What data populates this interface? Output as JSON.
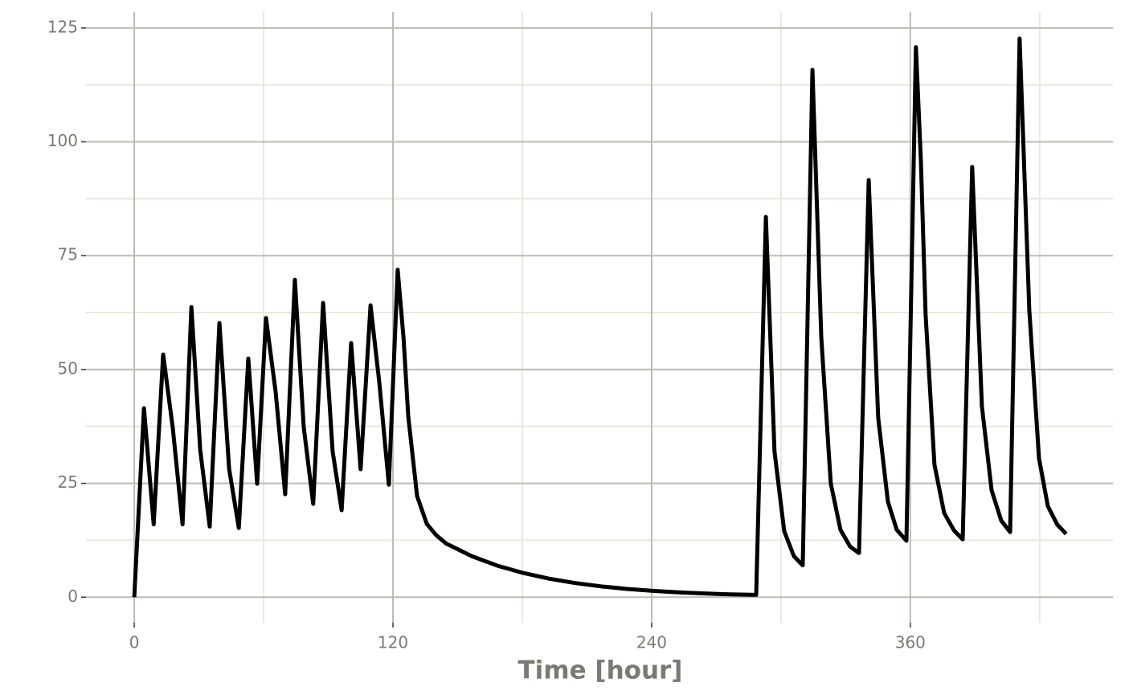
{
  "chart_data": {
    "type": "line",
    "xlabel": "Time [hour]",
    "xlim": [
      -22.4,
      454
    ],
    "ylim": [
      -5.6,
      128.5
    ],
    "xticks": [
      0,
      120,
      240,
      360
    ],
    "xminorticks": [
      60,
      180,
      300,
      420
    ],
    "yticks": [
      0,
      25,
      50,
      75,
      100,
      125
    ],
    "yminorticks": [
      12.5,
      37.5,
      62.5,
      87.5,
      112.5
    ],
    "grid": true,
    "series": [
      {
        "color": "#000000",
        "x": [
          0,
          4.5,
          9,
          13.4,
          17.9,
          22.4,
          26.5,
          30.6,
          35,
          39.5,
          44,
          48.5,
          52.9,
          57,
          61.1,
          65.6,
          70,
          74.5,
          78.6,
          83,
          87.6,
          92,
          96.2,
          100.6,
          105,
          109.6,
          113.7,
          118.1,
          122.2,
          124.9,
          127.1,
          131.2,
          135.7,
          140.1,
          144.6,
          156.6,
          168.6,
          180.6,
          192.6,
          204.6,
          216.6,
          228.6,
          240.6,
          252.6,
          264.6,
          276.6,
          288.5,
          293,
          297,
          301.5,
          306,
          310.1,
          314.6,
          318.7,
          323.1,
          327.6,
          332.1,
          336.2,
          340.7,
          345.1,
          349.6,
          353.7,
          358.2,
          362.6,
          364.9,
          367.1,
          371.2,
          375.7,
          380.2,
          384.3,
          388.7,
          393.2,
          397.7,
          402.2,
          406.3,
          410.7,
          415.2,
          419.7,
          423.8,
          428.2,
          432.3
        ],
        "values": [
          0,
          41.5,
          16,
          53.3,
          37,
          16,
          63.7,
          32.3,
          15.5,
          60.2,
          28.2,
          15.2,
          52.4,
          24.9,
          61.3,
          45,
          22.6,
          69.7,
          37.4,
          20.5,
          64.6,
          32.1,
          19.1,
          55.8,
          28.1,
          64.1,
          47,
          24.7,
          71.9,
          57,
          39.7,
          22.2,
          16.1,
          13.6,
          11.8,
          9.0,
          6.9,
          5.3,
          4.05,
          3.1,
          2.37,
          1.81,
          1.39,
          1.06,
          0.81,
          0.62,
          0.5,
          83.5,
          32,
          14.5,
          9,
          7,
          115.8,
          57,
          25,
          14.8,
          11.1,
          9.7,
          91.6,
          39.4,
          21,
          14.8,
          12.4,
          120.8,
          95.9,
          62,
          29.1,
          18.5,
          14.7,
          12.7,
          94.5,
          42,
          23.5,
          16.8,
          14.3,
          122.7,
          63,
          30.5,
          20,
          15.9,
          13.9
        ]
      }
    ]
  }
}
